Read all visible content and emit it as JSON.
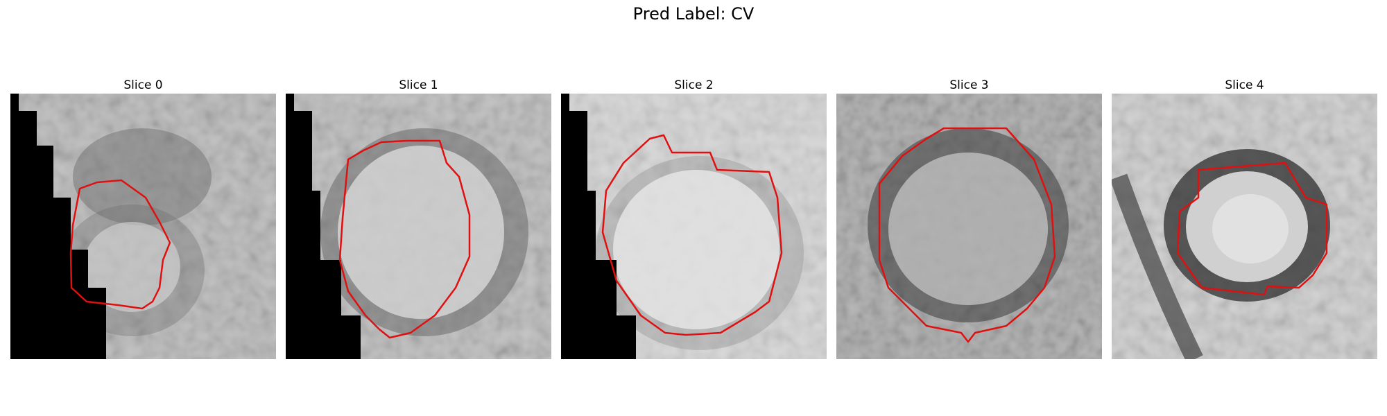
{
  "title": "Pred Label: CV",
  "panels": [
    {
      "label": "Slice 0"
    },
    {
      "label": "Slice 1"
    },
    {
      "label": "Slice 2"
    },
    {
      "label": "Slice 3"
    },
    {
      "label": "Slice 4"
    }
  ],
  "colors": {
    "contour": "#e01010",
    "mask": "#000000"
  }
}
